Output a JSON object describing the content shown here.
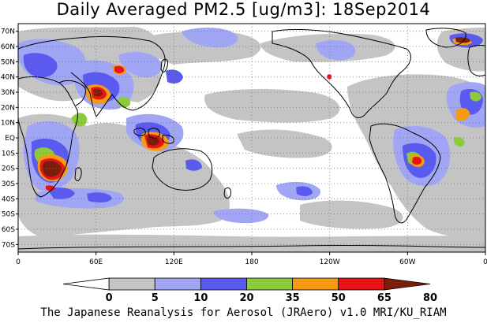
{
  "title": "Daily Averaged PM2.5 [ug/m3]: 18Sep2014",
  "credit": "The Japanese Reanalysis for Aerosol (JRAero) v1.0 MRI/KU_RIAM",
  "map": {
    "lat_labels": [
      "70N",
      "60N",
      "50N",
      "40N",
      "30N",
      "20N",
      "10N",
      "EQ",
      "10S",
      "20S",
      "30S",
      "40S",
      "50S",
      "60S",
      "70S"
    ],
    "lon_labels": [
      "0",
      "60E",
      "120E",
      "180",
      "120W",
      "60W",
      "0"
    ],
    "lat_values": [
      70,
      60,
      50,
      40,
      30,
      20,
      10,
      0,
      -10,
      -20,
      -30,
      -40,
      -50,
      -60,
      -70
    ],
    "lon_values": [
      0,
      60,
      120,
      180,
      240,
      300,
      360
    ],
    "extent": {
      "lon": [
        0,
        360
      ],
      "lat": [
        -75,
        75
      ]
    },
    "grid": true
  },
  "colorbar": {
    "ticks": [
      "0",
      "5",
      "10",
      "20",
      "35",
      "50",
      "65",
      "80"
    ],
    "colors": [
      "#ffffff",
      "#c4c4c4",
      "#a0a6f4",
      "#5a5aee",
      "#8ccc3c",
      "#f59a14",
      "#e61414",
      "#781e0a"
    ],
    "units": "ug/m3"
  }
}
